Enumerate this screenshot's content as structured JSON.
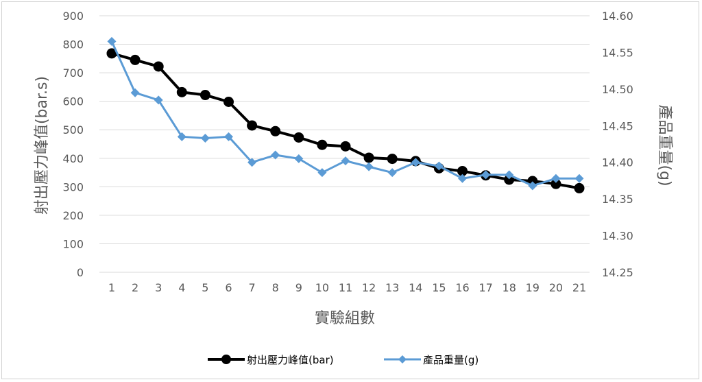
{
  "chart_data": {
    "type": "line",
    "xlabel": "實驗組數",
    "ylabel_left": "射出壓力峰值(bar.s)",
    "ylabel_right": "產品重量(g)",
    "categories": [
      "1",
      "2",
      "3",
      "4",
      "5",
      "6",
      "7",
      "8",
      "9",
      "10",
      "11",
      "12",
      "13",
      "14",
      "15",
      "16",
      "17",
      "18",
      "19",
      "20",
      "21"
    ],
    "y_left": {
      "min": 0,
      "max": 900,
      "step": 100,
      "ticks": [
        "0",
        "100",
        "200",
        "300",
        "400",
        "500",
        "600",
        "700",
        "800",
        "900"
      ]
    },
    "y_right": {
      "min": 14.25,
      "max": 14.6,
      "step": 0.05,
      "ticks": [
        "14.25",
        "14.30",
        "14.35",
        "14.40",
        "14.45",
        "14.50",
        "14.55",
        "14.60"
      ]
    },
    "grid": true,
    "legend_position": "bottom",
    "series": [
      {
        "name": "射出壓力峰值(bar)",
        "axis": "left",
        "color": "#000000",
        "marker": "circle",
        "values": [
          768,
          745,
          722,
          632,
          622,
          598,
          515,
          495,
          473,
          447,
          442,
          402,
          398,
          390,
          365,
          355,
          340,
          325,
          320,
          310,
          295
        ]
      },
      {
        "name": "產品重量(g)",
        "axis": "right",
        "color": "#5b9bd5",
        "marker": "diamond",
        "values": [
          14.565,
          14.495,
          14.485,
          14.435,
          14.433,
          14.435,
          14.4,
          14.41,
          14.405,
          14.386,
          14.402,
          14.394,
          14.386,
          14.4,
          14.395,
          14.378,
          14.383,
          14.383,
          14.368,
          14.378,
          14.378
        ]
      }
    ]
  }
}
